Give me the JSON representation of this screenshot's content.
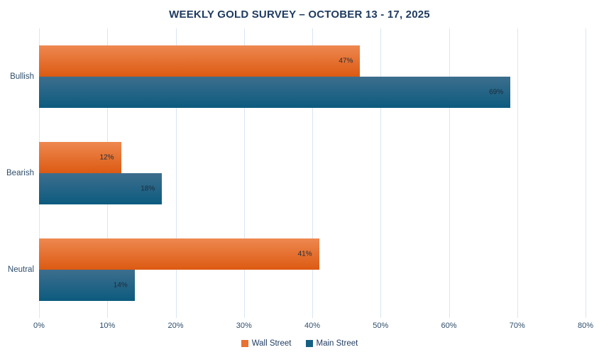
{
  "title": "WEEKLY GOLD SURVEY – OCTOBER 13 - 17, 2025",
  "colors": {
    "title_text": "#1e3a5f",
    "axis_text": "#2e4d6b",
    "gridline": "#d9e6f2",
    "bar_label_text": "#1c2b39",
    "background": "#ffffff"
  },
  "chart_data": {
    "type": "bar",
    "orientation": "horizontal",
    "title": "WEEKLY GOLD SURVEY – OCTOBER 13 - 17, 2025",
    "categories": [
      "Bullish",
      "Bearish",
      "Neutral"
    ],
    "series": [
      {
        "name": "Wall Street",
        "values": [
          47,
          12,
          41
        ],
        "legend_color": "#e97132",
        "gradient_top": "#ee8850",
        "gradient_bottom": "#dc5a12"
      },
      {
        "name": "Main Street",
        "values": [
          69,
          18,
          14
        ],
        "legend_color": "#156082",
        "gradient_top": "#3d6e8d",
        "gradient_bottom": "#0c5b7f"
      }
    ],
    "value_suffix": "%",
    "data_labels": [
      "47%",
      "69%",
      "12%",
      "18%",
      "41%",
      "14%"
    ],
    "xlabel": "",
    "ylabel": "",
    "xlim": [
      0,
      80
    ],
    "x_ticks": [
      "0%",
      "10%",
      "20%",
      "30%",
      "40%",
      "50%",
      "60%",
      "70%",
      "80%"
    ],
    "grid": true,
    "legend_position": "bottom"
  }
}
